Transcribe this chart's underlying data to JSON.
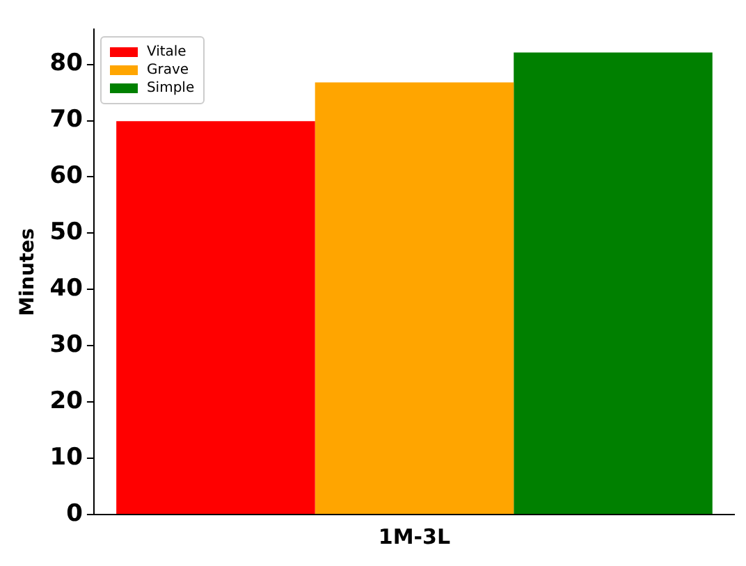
{
  "chart_data": {
    "type": "bar",
    "ylabel": "Minutes",
    "categories": [
      "1M-3L"
    ],
    "series": [
      {
        "name": "Vitale",
        "color": "#ff0000",
        "values": [
          69.9
        ]
      },
      {
        "name": "Grave",
        "color": "#ffa500",
        "values": [
          76.8
        ]
      },
      {
        "name": "Simple",
        "color": "#008000",
        "values": [
          82.1
        ]
      }
    ],
    "ylim": [
      0,
      86.2
    ],
    "yticks": [
      0,
      10,
      20,
      30,
      40,
      50,
      60,
      70,
      80
    ],
    "grid": false,
    "legend": "top left"
  }
}
